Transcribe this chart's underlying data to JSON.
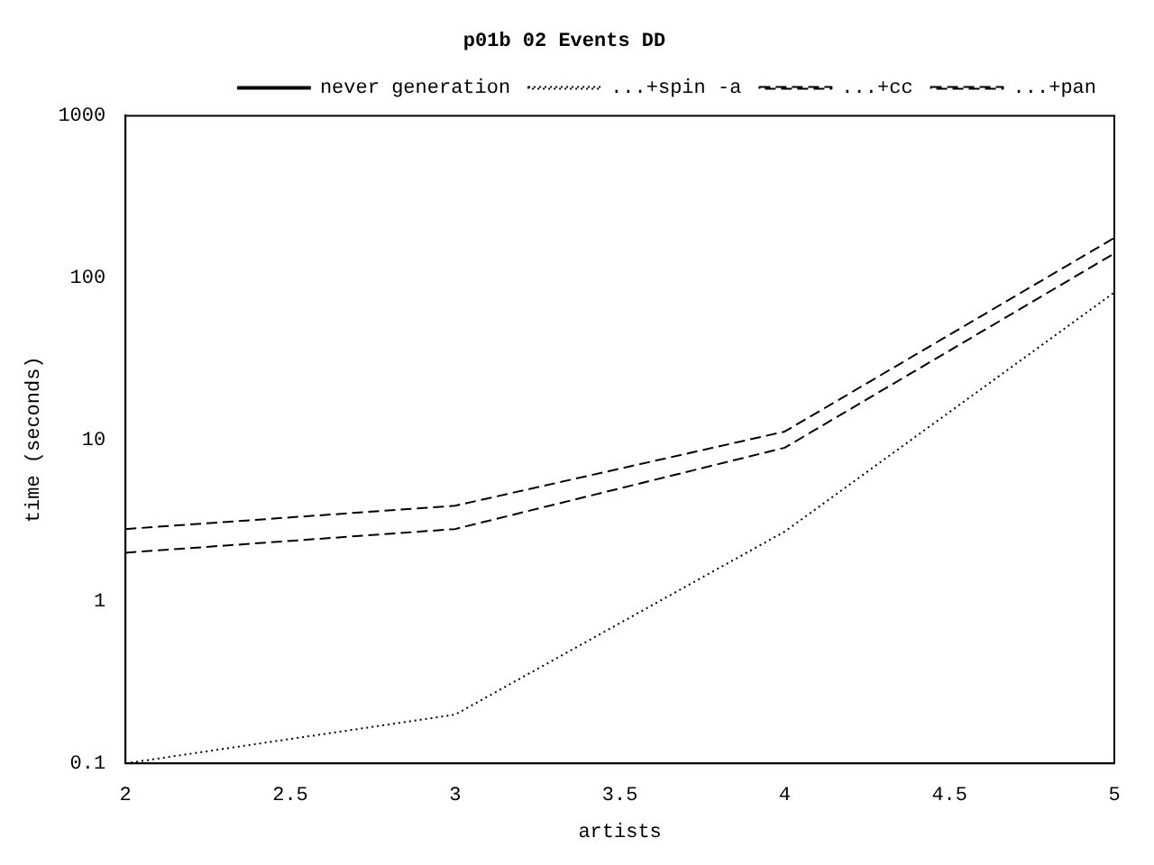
{
  "chart_data": {
    "type": "line",
    "title": "p01b 02 Events DD",
    "xlabel": "artists",
    "ylabel": "time (seconds)",
    "x": [
      2,
      3,
      4,
      5
    ],
    "series": [
      {
        "name": "never generation",
        "color": "#000000",
        "line_style": "solid",
        "values": [
          null,
          null,
          null,
          null
        ]
      },
      {
        "name": "...+spin -a",
        "color": "#000000",
        "line_style": "dotted",
        "values": [
          0.1,
          0.2,
          2.7,
          81
        ]
      },
      {
        "name": "...+cc",
        "color": "#000000",
        "line_style": "dashed",
        "values": [
          2.0,
          2.8,
          8.9,
          141
        ]
      },
      {
        "name": "...+pan",
        "color": "#000000",
        "line_style": "dashed",
        "values": [
          2.8,
          3.9,
          11.2,
          176
        ]
      }
    ],
    "xlim": [
      2,
      5
    ],
    "xticks": [
      2,
      2.5,
      3,
      3.5,
      4,
      4.5,
      5
    ],
    "ylim": [
      0.1,
      1000
    ],
    "yticks": [
      0.1,
      1,
      10,
      100,
      1000
    ],
    "log": "y",
    "grid": false,
    "legend": "top right",
    "marker": "none"
  }
}
